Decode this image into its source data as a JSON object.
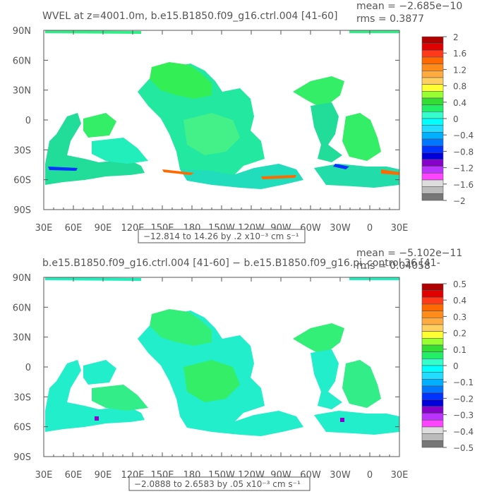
{
  "chart_data": [
    {
      "type": "heatmap",
      "title": "WVEL at z=4001.0m, b.e15.B1850.f09_g16.ctrl.004 [41-60]",
      "stats": {
        "mean": "mean = −2.685e−10",
        "rms": "rms = 0.3877"
      },
      "x_ticks": [
        "30E",
        "60E",
        "90E",
        "120E",
        "150E",
        "180",
        "150W",
        "120W",
        "90W",
        "60W",
        "30W",
        "0",
        "30E"
      ],
      "y_ticks": [
        "90N",
        "60N",
        "30N",
        "0",
        "30S",
        "60S",
        "90S"
      ],
      "xlim": [
        30,
        390
      ],
      "ylim": [
        -90,
        90
      ],
      "range_note": "−12.814 to 14.26 by .2 x10⁻³ cm s⁻¹",
      "colorbar": {
        "labels": [
          "2",
          "1.6",
          "1.2",
          "0.8",
          "0.4",
          "0",
          "−0.4",
          "−0.8",
          "−1.2",
          "−1.6",
          "−2"
        ],
        "colors": [
          "#b00000",
          "#e00000",
          "#ff3a1a",
          "#ff6a00",
          "#ff8c1a",
          "#ffab40",
          "#ffd060",
          "#ffff33",
          "#99ff33",
          "#33dd33",
          "#22ee66",
          "#33ffcc",
          "#00ffff",
          "#22ddff",
          "#00b0ff",
          "#0077ff",
          "#0033ff",
          "#0000dd",
          "#8800cc",
          "#bb33ff",
          "#ff44ff",
          "#dddddd",
          "#bbbbbb",
          "#777777"
        ]
      }
    },
    {
      "type": "heatmap",
      "title": "b.e15.B1850.f09_g16.ctrl.004 [41-60] − b.e15.B1850.f09_g16.pi_control.36 [41-",
      "stats": {
        "mean": "mean = −5.102e−11",
        "rms": "rms = 0.04058"
      },
      "x_ticks": [
        "30E",
        "60E",
        "90E",
        "120E",
        "150E",
        "180",
        "150W",
        "120W",
        "90W",
        "60W",
        "30W",
        "0",
        "30E"
      ],
      "y_ticks": [
        "90N",
        "60N",
        "30N",
        "0",
        "30S",
        "60S",
        "90S"
      ],
      "xlim": [
        30,
        390
      ],
      "ylim": [
        -90,
        90
      ],
      "range_note": "−2.0888 to 2.6583 by .05 x10⁻³ cm s⁻¹",
      "colorbar": {
        "labels": [
          "0.5",
          "0.4",
          "0.3",
          "0.2",
          "0.1",
          "0",
          "−0.1",
          "−0.2",
          "−0.3",
          "−0.4",
          "−0.5"
        ],
        "colors": [
          "#b00000",
          "#e00000",
          "#ff3a1a",
          "#ff6a00",
          "#ff8c1a",
          "#ffab40",
          "#ffd060",
          "#ffff33",
          "#99ff33",
          "#33dd33",
          "#22ee66",
          "#33ffcc",
          "#00ffff",
          "#22ddff",
          "#00b0ff",
          "#0077ff",
          "#0033ff",
          "#0000dd",
          "#8800cc",
          "#bb33ff",
          "#ff44ff",
          "#dddddd",
          "#bbbbbb",
          "#777777"
        ]
      }
    }
  ]
}
